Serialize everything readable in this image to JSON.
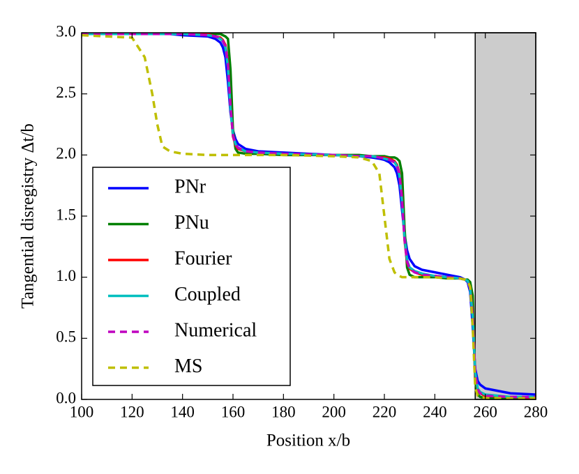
{
  "chart_data": {
    "type": "line",
    "x_label": "Position x/b",
    "y_label": "Tangential disregistry Δt/b",
    "x": [
      100,
      120,
      125,
      128,
      130,
      132,
      135,
      140,
      150,
      153,
      155,
      156,
      157,
      158,
      159,
      160,
      161,
      162,
      165,
      170,
      180,
      200,
      210,
      215,
      218,
      220,
      222,
      224,
      225,
      226,
      227,
      228,
      229,
      230,
      232,
      235,
      240,
      245,
      250,
      252,
      253,
      254,
      255,
      256,
      257,
      258,
      260,
      270,
      280
    ],
    "series": [
      {
        "name": "PNr",
        "color": "#0000ff",
        "dashed": false,
        "values": [
          2.99,
          2.99,
          2.99,
          2.99,
          2.99,
          2.99,
          2.99,
          2.98,
          2.97,
          2.95,
          2.92,
          2.88,
          2.8,
          2.6,
          2.35,
          2.2,
          2.13,
          2.09,
          2.05,
          2.03,
          2.02,
          2.0,
          1.99,
          1.98,
          1.97,
          1.96,
          1.94,
          1.9,
          1.85,
          1.75,
          1.55,
          1.35,
          1.22,
          1.15,
          1.09,
          1.06,
          1.04,
          1.02,
          1.0,
          0.98,
          0.96,
          0.88,
          0.6,
          0.25,
          0.15,
          0.12,
          0.09,
          0.05,
          0.04
        ]
      },
      {
        "name": "PNu",
        "color": "#008000",
        "dashed": false,
        "values": [
          2.99,
          2.99,
          2.99,
          2.99,
          2.99,
          2.99,
          2.99,
          2.99,
          2.99,
          2.99,
          2.99,
          2.98,
          2.97,
          2.95,
          2.7,
          2.2,
          2.05,
          2.02,
          2.01,
          2.01,
          2.0,
          2.0,
          2.0,
          1.99,
          1.99,
          1.99,
          1.98,
          1.98,
          1.97,
          1.95,
          1.85,
          1.4,
          1.08,
          1.02,
          1.0,
          1.0,
          1.0,
          0.99,
          0.99,
          0.98,
          0.98,
          0.96,
          0.85,
          0.15,
          0.04,
          0.02,
          0.01,
          0.01,
          0.01
        ]
      },
      {
        "name": "Fourier",
        "color": "#ff0000",
        "dashed": false,
        "values": [
          2.99,
          2.99,
          2.99,
          2.99,
          2.99,
          2.99,
          2.99,
          2.99,
          2.99,
          2.97,
          2.96,
          2.94,
          2.9,
          2.75,
          2.4,
          2.15,
          2.08,
          2.05,
          2.03,
          2.02,
          2.01,
          2.0,
          1.99,
          1.99,
          1.98,
          1.98,
          1.97,
          1.95,
          1.92,
          1.85,
          1.65,
          1.3,
          1.12,
          1.07,
          1.04,
          1.02,
          1.01,
          1.0,
          0.99,
          0.98,
          0.97,
          0.92,
          0.7,
          0.2,
          0.08,
          0.05,
          0.03,
          0.02,
          0.01
        ]
      },
      {
        "name": "Coupled",
        "color": "#00bfbf",
        "dashed": false,
        "values": [
          2.99,
          2.99,
          2.99,
          2.99,
          2.99,
          2.99,
          2.99,
          2.99,
          2.98,
          2.97,
          2.95,
          2.93,
          2.88,
          2.72,
          2.38,
          2.16,
          2.09,
          2.06,
          2.03,
          2.02,
          2.01,
          2.0,
          1.99,
          1.99,
          1.98,
          1.97,
          1.96,
          1.94,
          1.91,
          1.83,
          1.62,
          1.32,
          1.14,
          1.08,
          1.05,
          1.03,
          1.01,
          1.0,
          0.99,
          0.98,
          0.97,
          0.91,
          0.68,
          0.22,
          0.09,
          0.06,
          0.04,
          0.02,
          0.02
        ]
      },
      {
        "name": "Numerical",
        "color": "#bf00bf",
        "dashed": true,
        "values": [
          2.99,
          2.99,
          2.99,
          2.99,
          2.99,
          2.99,
          2.99,
          2.99,
          2.98,
          2.97,
          2.96,
          2.93,
          2.89,
          2.74,
          2.4,
          2.16,
          2.09,
          2.06,
          2.03,
          2.02,
          2.01,
          2.0,
          1.99,
          1.99,
          1.98,
          1.97,
          1.96,
          1.94,
          1.91,
          1.84,
          1.63,
          1.31,
          1.13,
          1.07,
          1.04,
          1.02,
          1.01,
          1.0,
          0.99,
          0.98,
          0.97,
          0.91,
          0.69,
          0.21,
          0.08,
          0.05,
          0.03,
          0.02,
          0.02
        ]
      },
      {
        "name": "MS",
        "color": "#bfbf00",
        "dashed": true,
        "values": [
          2.98,
          2.96,
          2.8,
          2.5,
          2.25,
          2.07,
          2.03,
          2.01,
          2.0,
          2.0,
          2.0,
          2.0,
          2.0,
          2.0,
          2.0,
          2.0,
          2.0,
          2.0,
          2.0,
          2.0,
          2.0,
          1.99,
          1.98,
          1.95,
          1.85,
          1.5,
          1.15,
          1.04,
          1.02,
          1.01,
          1.0,
          1.0,
          1.0,
          1.0,
          1.0,
          1.0,
          1.0,
          0.99,
          0.99,
          0.98,
          0.97,
          0.92,
          0.6,
          0.1,
          0.03,
          0.02,
          0.01,
          0.01,
          0.01
        ]
      }
    ],
    "shaded_region": [
      256,
      280
    ],
    "shade_color": "#cccccc",
    "xlim": [
      100,
      280
    ],
    "xticks": [
      100,
      120,
      140,
      160,
      180,
      200,
      220,
      240,
      260,
      280
    ],
    "ylim": [
      0,
      3
    ],
    "yticks": [
      {
        "value": 0,
        "label": "0.0"
      },
      0.5,
      {
        "value": 1,
        "label": "1.0"
      },
      1.5,
      {
        "value": 2,
        "label": "2.0"
      },
      2.5,
      {
        "value": 3,
        "label": "3.0"
      }
    ],
    "grid": false,
    "legend": "lower left"
  }
}
